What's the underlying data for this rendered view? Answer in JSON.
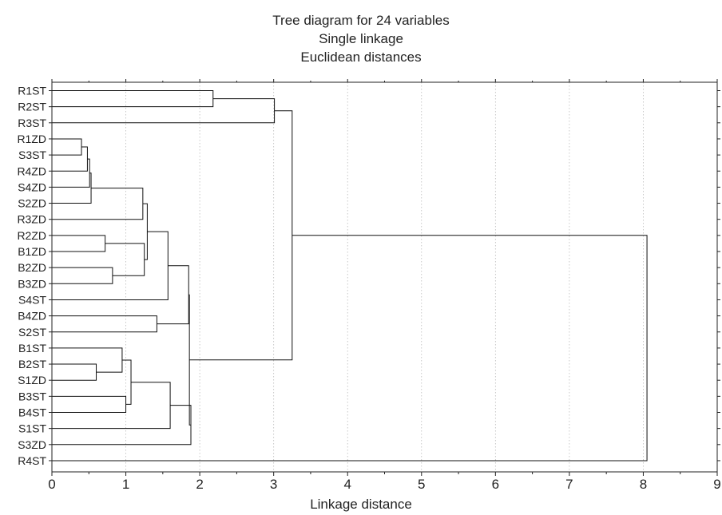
{
  "chart_data": {
    "type": "dendrogram",
    "title_lines": [
      "Tree diagram for 24 variables",
      "Single linkage",
      "Euclidean distances"
    ],
    "xlabel": "Linkage distance",
    "xlim": [
      0,
      9
    ],
    "xticks": [
      "0",
      "1",
      "2",
      "3",
      "4",
      "5",
      "6",
      "7",
      "8",
      "9"
    ],
    "grid": "vertical dotted",
    "leaves": [
      "R1ST",
      "R2ST",
      "R3ST",
      "R1ZD",
      "S3ST",
      "R4ZD",
      "S4ZD",
      "S2ZD",
      "R3ZD",
      "R2ZD",
      "B1ZD",
      "B2ZD",
      "B3ZD",
      "S4ST",
      "B4ZD",
      "S2ST",
      "B1ST",
      "B2ST",
      "S1ZD",
      "B3ST",
      "B4ST",
      "S1ST",
      "S3ZD",
      "R4ST"
    ],
    "merges": [
      {
        "a": "R1ST",
        "b": "R2ST",
        "distance": 2.18
      },
      {
        "a": "R1ST-R2ST",
        "b": "R3ST",
        "distance": 3.01
      },
      {
        "a": "R1ZD",
        "b": "S3ST",
        "distance": 0.4
      },
      {
        "a": "R1ZD-S3ST",
        "b": "R4ZD",
        "distance": 0.48
      },
      {
        "a": "R4ZD-group",
        "b": "S4ZD",
        "distance": 0.51
      },
      {
        "a": "S4ZD-group",
        "b": "S2ZD",
        "distance": 0.53
      },
      {
        "a": "S2ZD-group",
        "b": "R3ZD",
        "distance": 1.23
      },
      {
        "a": "R2ZD",
        "b": "B1ZD",
        "distance": 0.72
      },
      {
        "a": "B2ZD",
        "b": "B3ZD",
        "distance": 0.82
      },
      {
        "a": "R2ZD-B1ZD",
        "b": "B2ZD-B3ZD",
        "distance": 1.25
      },
      {
        "a": "R3ZD-group",
        "b": "R2ZD-group",
        "distance": 1.29
      },
      {
        "a": "ZD-group",
        "b": "S4ST",
        "distance": 1.57
      },
      {
        "a": "B4ZD",
        "b": "S2ST",
        "distance": 1.42
      },
      {
        "a": "S4ST-group",
        "b": "B4ZD-S2ST",
        "distance": 1.85
      },
      {
        "a": "B2ST",
        "b": "S1ZD",
        "distance": 0.6
      },
      {
        "a": "B1ST",
        "b": "B2ST-S1ZD",
        "distance": 0.95
      },
      {
        "a": "B3ST",
        "b": "B4ST",
        "distance": 1.0
      },
      {
        "a": "B1ST-group",
        "b": "B3ST-B4ST",
        "distance": 1.07
      },
      {
        "a": "B-group",
        "b": "S1ST",
        "distance": 1.6
      },
      {
        "a": "S1ST-group",
        "b": "S3ZD",
        "distance": 1.88
      },
      {
        "a": "upper-group",
        "b": "lower-group",
        "distance": 1.86
      },
      {
        "a": "R-group",
        "b": "mixed-group",
        "distance": 3.25
      },
      {
        "a": "all-other",
        "b": "R4ST",
        "distance": 8.05
      }
    ]
  }
}
